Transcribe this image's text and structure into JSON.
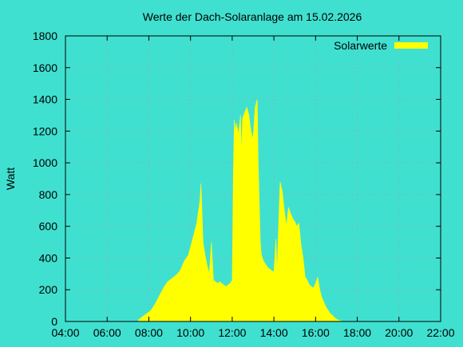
{
  "chart_data": {
    "type": "area",
    "title": "Werte der Dach-Solaranlage am 15.02.2026",
    "ylabel": "Watt",
    "xlabel": "",
    "x_unit": "hours",
    "xlim": [
      4,
      22
    ],
    "ylim": [
      0,
      1800
    ],
    "x_ticks": [
      "04:00",
      "06:00",
      "08:00",
      "10:00",
      "12:00",
      "14:00",
      "16:00",
      "18:00",
      "20:00",
      "22:00"
    ],
    "y_ticks": [
      "0",
      "200",
      "400",
      "600",
      "800",
      "1000",
      "1200",
      "1400",
      "1600",
      "1800"
    ],
    "grid": true,
    "legend_position": "top-right",
    "colors": {
      "background": "#40e0d0",
      "series": "#ffff00",
      "frame": "#000000"
    },
    "series": [
      {
        "name": "Solarwerte",
        "x": [
          7.5,
          7.7,
          7.9,
          8.1,
          8.3,
          8.5,
          8.7,
          8.9,
          9.1,
          9.3,
          9.5,
          9.7,
          9.9,
          10.1,
          10.3,
          10.45,
          10.5,
          10.55,
          10.6,
          10.7,
          10.8,
          10.9,
          11.0,
          11.1,
          11.2,
          11.3,
          11.4,
          11.5,
          11.6,
          11.7,
          11.8,
          11.9,
          12.0,
          12.05,
          12.1,
          12.15,
          12.2,
          12.3,
          12.4,
          12.45,
          12.5,
          12.6,
          12.7,
          12.8,
          12.9,
          13.0,
          13.1,
          13.2,
          13.25,
          13.3,
          13.35,
          13.4,
          13.5,
          13.6,
          13.7,
          13.8,
          13.9,
          14.0,
          14.1,
          14.15,
          14.2,
          14.3,
          14.4,
          14.5,
          14.6,
          14.7,
          14.8,
          14.9,
          15.0,
          15.1,
          15.2,
          15.3,
          15.4,
          15.5,
          15.6,
          15.7,
          15.8,
          15.9,
          16.0,
          16.1,
          16.2,
          16.3,
          16.4,
          16.5,
          16.6,
          16.7,
          16.8,
          16.9,
          17.0,
          17.1,
          17.2,
          17.3
        ],
        "values": [
          10,
          30,
          50,
          70,
          110,
          160,
          210,
          250,
          270,
          290,
          320,
          380,
          420,
          520,
          620,
          760,
          870,
          700,
          500,
          420,
          350,
          300,
          500,
          260,
          250,
          240,
          250,
          240,
          230,
          220,
          230,
          240,
          260,
          900,
          1270,
          1200,
          1250,
          1180,
          1300,
          1050,
          1280,
          1320,
          1350,
          1300,
          1200,
          1150,
          1350,
          1400,
          1000,
          750,
          500,
          420,
          380,
          360,
          340,
          330,
          320,
          310,
          520,
          300,
          500,
          880,
          820,
          700,
          600,
          720,
          680,
          650,
          630,
          600,
          620,
          480,
          400,
          280,
          260,
          230,
          220,
          210,
          240,
          280,
          200,
          150,
          120,
          90,
          70,
          50,
          40,
          25,
          15,
          8,
          4,
          0
        ]
      }
    ]
  }
}
